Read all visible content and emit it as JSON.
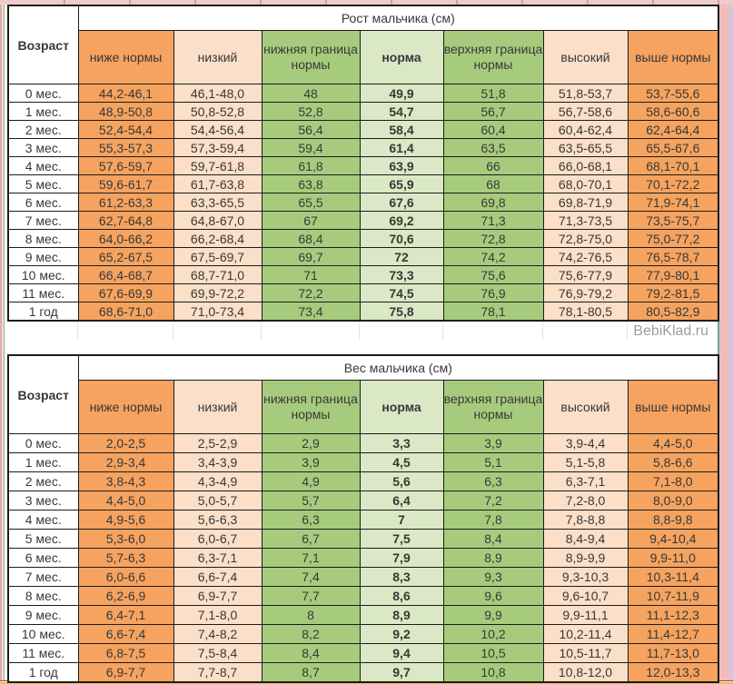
{
  "watermark": "BebiKlad.ru",
  "colors": {
    "below_norm_orange": "#F5A35F",
    "low_peach": "#FBDFC9",
    "border_green": "#A7CB7D",
    "norm_light_green": "#DAE8C5"
  },
  "tables": [
    {
      "title": "Рост мальчика (см)",
      "age_header": "Возраст",
      "columns": [
        "ниже нормы",
        "низкий",
        "нижняя граница нормы",
        "норма",
        "верхняя граница нормы",
        "высокий",
        "выше нормы"
      ],
      "rows": [
        {
          "age": "0 мес.",
          "values": [
            "44,2-46,1",
            "46,1-48,0",
            "48",
            "49,9",
            "51,8",
            "51,8-53,7",
            "53,7-55,6"
          ]
        },
        {
          "age": "1 мес.",
          "values": [
            "48,9-50,8",
            "50,8-52,8",
            "52,8",
            "54,7",
            "56,7",
            "56,7-58,6",
            "58,6-60,6"
          ]
        },
        {
          "age": "2 мес.",
          "values": [
            "52,4-54,4",
            "54,4-56,4",
            "56,4",
            "58,4",
            "60,4",
            "60,4-62,4",
            "62,4-64,4"
          ]
        },
        {
          "age": "3 мес.",
          "values": [
            "55,3-57,3",
            "57,3-59,4",
            "59,4",
            "61,4",
            "63,5",
            "63,5-65,5",
            "65,5-67,6"
          ]
        },
        {
          "age": "4 мес.",
          "values": [
            "57,6-59,7",
            "59,7-61,8",
            "61,8",
            "63,9",
            "66",
            "66,0-68,1",
            "68,1-70,1"
          ]
        },
        {
          "age": "5 мес.",
          "values": [
            "59,6-61,7",
            "61,7-63,8",
            "63,8",
            "65,9",
            "68",
            "68,0-70,1",
            "70,1-72,2"
          ]
        },
        {
          "age": "6 мес.",
          "values": [
            "61,2-63,3",
            "63,3-65,5",
            "65,5",
            "67,6",
            "69,8",
            "69,8-71,9",
            "71,9-74,1"
          ]
        },
        {
          "age": "7 мес.",
          "values": [
            "62,7-64,8",
            "64,8-67,0",
            "67",
            "69,2",
            "71,3",
            "71,3-73,5",
            "73,5-75,7"
          ]
        },
        {
          "age": "8 мес.",
          "values": [
            "64,0-66,2",
            "66,2-68,4",
            "68,4",
            "70,6",
            "72,8",
            "72,8-75,0",
            "75,0-77,2"
          ]
        },
        {
          "age": "9 мес.",
          "values": [
            "65,2-67,5",
            "67,5-69,7",
            "69,7",
            "72",
            "74,2",
            "74,2-76,5",
            "76,5-78,7"
          ]
        },
        {
          "age": "10 мес.",
          "values": [
            "66,4-68,7",
            "68,7-71,0",
            "71",
            "73,3",
            "75,6",
            "75,6-77,9",
            "77,9-80,1"
          ]
        },
        {
          "age": "11 мес.",
          "values": [
            "67,6-69,9",
            "69,9-72,2",
            "72,2",
            "74,5",
            "76,9",
            "76,9-79,2",
            "79,2-81,5"
          ]
        },
        {
          "age": "1 год",
          "values": [
            "68,6-71,0",
            "71,0-73,4",
            "73,4",
            "75,8",
            "78,1",
            "78,1-80,5",
            "80,5-82,9"
          ]
        }
      ]
    },
    {
      "title": "Вес мальчика (см)",
      "age_header": "Возраст",
      "columns": [
        "ниже нормы",
        "низкий",
        "нижняя граница нормы",
        "норма",
        "верхняя граница нормы",
        "высокий",
        "выше нормы"
      ],
      "rows": [
        {
          "age": "0 мес.",
          "values": [
            "2,0-2,5",
            "2,5-2,9",
            "2,9",
            "3,3",
            "3,9",
            "3,9-4,4",
            "4,4-5,0"
          ]
        },
        {
          "age": "1 мес.",
          "values": [
            "2,9-3,4",
            "3,4-3,9",
            "3,9",
            "4,5",
            "5,1",
            "5,1-5,8",
            "5,8-6,6"
          ]
        },
        {
          "age": "2 мес.",
          "values": [
            "3,8-4,3",
            "4,3-4,9",
            "4,9",
            "5,6",
            "6,3",
            "6,3-7,1",
            "7,1-8,0"
          ]
        },
        {
          "age": "3 мес.",
          "values": [
            "4,4-5,0",
            "5,0-5,7",
            "5,7",
            "6,4",
            "7,2",
            "7,2-8,0",
            "8,0-9,0"
          ]
        },
        {
          "age": "4 мес.",
          "values": [
            "4,9-5,6",
            "5,6-6,3",
            "6,3",
            "7",
            "7,8",
            "7,8-8,8",
            "8,8-9,8"
          ]
        },
        {
          "age": "5 мес.",
          "values": [
            "5,3-6,0",
            "6,0-6,7",
            "6,7",
            "7,5",
            "8,4",
            "8,4-9,4",
            "9,4-10,4"
          ]
        },
        {
          "age": "6 мес.",
          "values": [
            "5,7-6,3",
            "6,3-7,1",
            "7,1",
            "7,9",
            "8,9",
            "8,9-9,9",
            "9,9-11,0"
          ]
        },
        {
          "age": "7 мес.",
          "values": [
            "6,0-6,6",
            "6,6-7,4",
            "7,4",
            "8,3",
            "9,3",
            "9,3-10,3",
            "10,3-11,4"
          ]
        },
        {
          "age": "8 мес.",
          "values": [
            "6,2-6,9",
            "6,9-7,7",
            "7,7",
            "8,6",
            "9,6",
            "9,6-10,7",
            "10,7-11,9"
          ]
        },
        {
          "age": "9 мес.",
          "values": [
            "6,4-7,1",
            "7,1-8,0",
            "8",
            "8,9",
            "9,9",
            "9,9-11,1",
            "11,1-12,3"
          ]
        },
        {
          "age": "10 мес.",
          "values": [
            "6,6-7,4",
            "7,4-8,2",
            "8,2",
            "9,2",
            "10,2",
            "10,2-11,4",
            "11,4-12,7"
          ]
        },
        {
          "age": "11 мес.",
          "values": [
            "6,8-7,5",
            "7,5-8,4",
            "8,4",
            "9,4",
            "10,5",
            "10,5-11,7",
            "11,7-13,0"
          ]
        },
        {
          "age": "1 год",
          "values": [
            "6,9-7,7",
            "7,7-8,7",
            "8,7",
            "9,7",
            "10,8",
            "10,8-12,0",
            "12,0-13,3"
          ]
        }
      ]
    }
  ]
}
